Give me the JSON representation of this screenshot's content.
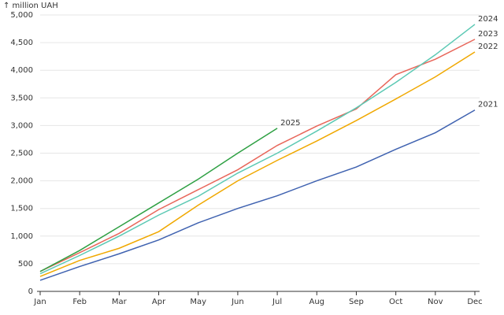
{
  "chart_data": {
    "type": "line",
    "y_label": "↑ million UAH",
    "categories": [
      "Jan",
      "Feb",
      "Mar",
      "Apr",
      "May",
      "Jun",
      "Jul",
      "Aug",
      "Sep",
      "Oct",
      "Nov",
      "Dec"
    ],
    "series": [
      {
        "name": "2021",
        "color": "#3f62b0",
        "values": [
          200,
          450,
          680,
          930,
          1240,
          1500,
          1730,
          2000,
          2250,
          2570,
          2870,
          3280
        ]
      },
      {
        "name": "2022",
        "color": "#f0a800",
        "values": [
          270,
          560,
          780,
          1080,
          1560,
          2000,
          2370,
          2720,
          3090,
          3480,
          3880,
          4330
        ]
      },
      {
        "name": "2023",
        "color": "#e8665a",
        "values": [
          360,
          700,
          1050,
          1480,
          1840,
          2200,
          2640,
          2990,
          3300,
          3920,
          4200,
          4560
        ]
      },
      {
        "name": "2024",
        "color": "#5cc9b4",
        "values": [
          320,
          650,
          1000,
          1380,
          1720,
          2140,
          2500,
          2900,
          3320,
          3780,
          4280,
          4830
        ]
      },
      {
        "name": "2025",
        "color": "#2ea043",
        "values": [
          360,
          740,
          1170,
          1600,
          2030,
          2500,
          2950,
          null,
          null,
          null,
          null,
          null
        ]
      }
    ],
    "ylim": [
      0,
      5000
    ],
    "yticks": [
      0,
      500,
      {
        "value": 1000,
        "label": "1,000"
      },
      {
        "value": 1500,
        "label": "1,500"
      },
      {
        "value": 2000,
        "label": "2,000"
      },
      {
        "value": 2500,
        "label": "2,500"
      },
      {
        "value": 3000,
        "label": "3,000"
      },
      {
        "value": 3500,
        "label": "3,500"
      },
      {
        "value": 4000,
        "label": "4,000"
      },
      {
        "value": 4500,
        "label": "4,500"
      },
      {
        "value": 5000,
        "label": "5,000"
      }
    ],
    "grid": true
  }
}
